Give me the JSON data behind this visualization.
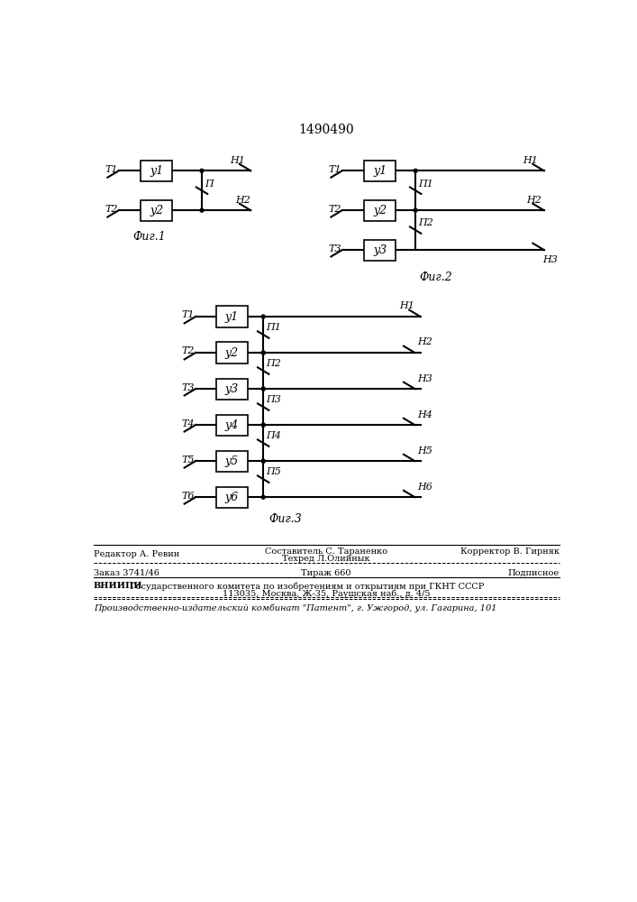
{
  "title": "1490490",
  "bg_color": "white",
  "line_color": "black",
  "fig1_label": "Фиг.1",
  "fig2_label": "Фиг.2",
  "fig3_label": "Фиг.3",
  "footer": {
    "editor": "Редактор А. Ревин",
    "compiler": "Составитель С. Тараненко",
    "techred": "Техред Л.Олийнык",
    "corrector": "Корректор В. Гирняк",
    "order": "Заказ 3741/46",
    "tirazh": "Тираж 660",
    "podpisnoe": "Подписное",
    "vniip_bold": "ВНИИПИ",
    "vniip_rest": " Государственного комитета по изобретениям и открытиям при ГКНТ СССР",
    "vniip_addr": "113035, Москва, Ж-35, Раушская наб., д. 4/5",
    "patent": "Производственно-издательский комбинат \"Патент\", г. Ужгород, ул. Гагарина, 101"
  }
}
